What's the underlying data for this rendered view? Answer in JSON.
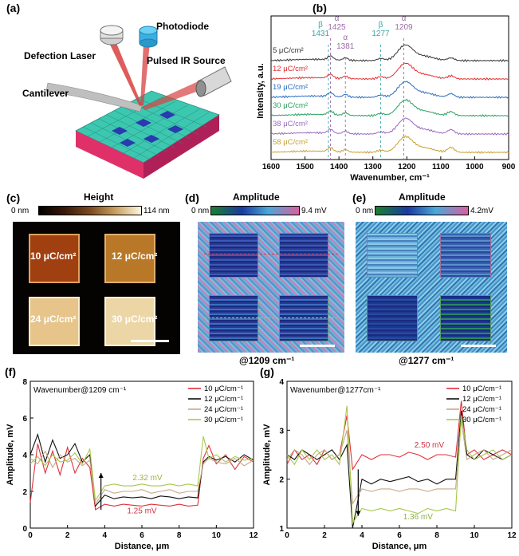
{
  "panels": {
    "a": {
      "label": "(a)",
      "labels": {
        "photodiode": "Photodiode",
        "laser": "Defection Laser",
        "ir": "Pulsed IR Source",
        "cantilever": "Cantilever"
      }
    },
    "b": {
      "label": "(b)",
      "ylabel": "Intensity, a.u.",
      "xlabel": "Wavenumber, cm⁻¹",
      "xticks": [
        "1600",
        "1500",
        "1400",
        "1300",
        "1200",
        "1100",
        "1000",
        "900"
      ],
      "annotations": [
        {
          "greek": "β",
          "value": "1431",
          "x": 1431,
          "color": "#3aa8a8"
        },
        {
          "greek": "α",
          "value": "1425",
          "x": 1425,
          "color": "#9b6aa8"
        },
        {
          "greek": "α",
          "value": "1381",
          "x": 1381,
          "color": "#9b6aa8"
        },
        {
          "greek": "β",
          "value": "1277",
          "x": 1277,
          "color": "#3aa8a8"
        },
        {
          "greek": "α",
          "value": "1209",
          "x": 1209,
          "color": "#9b6aa8"
        }
      ],
      "series": [
        {
          "name": "5 μC/cm²",
          "color": "#333333"
        },
        {
          "name": "12 μC/cm²",
          "color": "#e03030"
        },
        {
          "name": "19 μC/cm²",
          "color": "#2a6bc0"
        },
        {
          "name": "30 μC/cm²",
          "color": "#2aa060"
        },
        {
          "name": "38 μC/cm²",
          "color": "#9a6ac0"
        },
        {
          "name": "58 μC/cm²",
          "color": "#c8a030"
        }
      ]
    },
    "c": {
      "label": "(c)",
      "title": "Height",
      "min": "0 nm",
      "max": "114 nm",
      "squares": [
        "10 μC/cm²",
        "12 μC/cm²",
        "24 μC/cm²",
        "30 μC/cm²"
      ]
    },
    "d": {
      "label": "(d)",
      "title": "Amplitude",
      "min": "0 nm",
      "max": "9.4 mV",
      "caption": "@1209 cm⁻¹"
    },
    "e": {
      "label": "(e)",
      "title": "Amplitude",
      "min": "0 nm",
      "max": "4.2mV",
      "caption": "@1277 cm⁻¹"
    },
    "f": {
      "label": "(f)",
      "note": "Wavenumber@1209 cm⁻¹",
      "ylabel": "Amplitude, mV",
      "xlabel": "Distance, μm",
      "annot_high": "2.32 mV",
      "annot_low": "1.25 mV",
      "legend": [
        "10 μC/cm⁻¹",
        "12 μC/cm⁻¹",
        "24 μC/cm⁻¹",
        "30 μC/cm⁻¹"
      ]
    },
    "g": {
      "label": "(g)",
      "note": "Wavenumber@1277cm⁻¹",
      "ylabel": "Amplitude, mV",
      "xlabel": "Distance, μm",
      "annot_high": "2.50 mV",
      "annot_low": "1.36 mV",
      "legend": [
        "10 μC/cm⁻¹",
        "12 μC/cm⁻¹",
        "24 μC/cm⁻¹",
        "30 μC/cm⁻¹"
      ]
    }
  },
  "colors": {
    "s10": "#e0303a",
    "s12": "#111111",
    "s24": "#c8a88a",
    "s30": "#a8c84a"
  },
  "chart_data": [
    {
      "type": "line",
      "panel": "f",
      "xlabel": "Distance, μm",
      "ylabel": "Amplitude, mV",
      "xlim": [
        0,
        12
      ],
      "ylim": [
        0,
        8
      ],
      "xticks": [
        0,
        2,
        4,
        6,
        8,
        10,
        12
      ],
      "yticks": [
        0,
        2,
        4,
        6,
        8
      ],
      "x": [
        0.0,
        0.4,
        0.8,
        1.2,
        1.6,
        2.0,
        2.4,
        2.8,
        3.2,
        3.5,
        4.0,
        4.5,
        5.0,
        5.5,
        6.0,
        6.5,
        7.0,
        7.5,
        8.0,
        8.5,
        9.0,
        9.3,
        9.6,
        10.0,
        10.5,
        11.0,
        11.5,
        12.0
      ],
      "series": [
        {
          "name": "10 μC/cm⁻¹",
          "values": [
            1.4,
            4.6,
            3.0,
            4.2,
            2.9,
            4.4,
            3.0,
            3.8,
            3.3,
            1.0,
            1.3,
            1.2,
            1.3,
            1.25,
            1.2,
            1.3,
            1.25,
            1.2,
            1.3,
            1.2,
            1.25,
            3.8,
            4.5,
            3.5,
            4.0,
            3.2,
            3.9,
            3.6
          ]
        },
        {
          "name": "12 μC/cm⁻¹",
          "values": [
            4.0,
            5.1,
            3.6,
            4.8,
            3.8,
            4.0,
            4.6,
            3.6,
            4.0,
            1.2,
            1.8,
            1.6,
            1.7,
            1.65,
            1.7,
            1.6,
            1.75,
            1.7,
            1.6,
            1.7,
            1.65,
            3.6,
            3.9,
            3.7,
            3.9,
            3.6,
            4.0,
            3.7
          ]
        },
        {
          "name": "24 μC/cm⁻¹",
          "values": [
            3.8,
            3.5,
            4.2,
            3.3,
            4.0,
            3.6,
            3.8,
            3.4,
            3.7,
            1.3,
            2.1,
            1.9,
            2.0,
            2.0,
            2.1,
            1.9,
            2.0,
            2.1,
            1.9,
            2.0,
            2.0,
            3.5,
            3.8,
            3.6,
            3.5,
            3.8,
            3.4,
            3.7
          ]
        },
        {
          "name": "30 μC/cm⁻¹",
          "values": [
            3.5,
            3.9,
            3.4,
            4.0,
            3.6,
            3.7,
            4.1,
            3.5,
            4.3,
            1.5,
            2.3,
            2.4,
            2.3,
            2.3,
            2.4,
            2.3,
            2.3,
            2.4,
            2.3,
            2.4,
            2.3,
            5.0,
            3.8,
            4.0,
            3.6,
            3.9,
            3.7,
            3.8
          ]
        }
      ]
    },
    {
      "type": "line",
      "panel": "g",
      "xlabel": "Distance, μm",
      "ylabel": "Amplitude, mV",
      "xlim": [
        0,
        12
      ],
      "ylim": [
        1,
        4
      ],
      "xticks": [
        0,
        2,
        4,
        6,
        8,
        10,
        12
      ],
      "yticks": [
        1,
        2,
        3,
        4
      ],
      "x": [
        0.0,
        0.4,
        0.8,
        1.2,
        1.6,
        2.0,
        2.4,
        2.8,
        3.2,
        3.5,
        4.0,
        4.5,
        5.0,
        5.5,
        6.0,
        6.5,
        7.0,
        7.5,
        8.0,
        8.5,
        9.0,
        9.3,
        9.6,
        10.0,
        10.5,
        11.0,
        11.5,
        12.0
      ],
      "series": [
        {
          "name": "10 μC/cm⁻¹",
          "values": [
            2.3,
            2.6,
            2.4,
            2.5,
            2.3,
            2.6,
            2.4,
            2.5,
            3.3,
            2.2,
            2.5,
            2.4,
            2.5,
            2.5,
            2.45,
            2.55,
            2.5,
            2.4,
            2.5,
            2.5,
            2.45,
            3.6,
            2.5,
            2.6,
            2.4,
            2.5,
            2.6,
            2.5
          ]
        },
        {
          "name": "12 μC/cm⁻¹",
          "values": [
            2.5,
            2.4,
            2.6,
            2.5,
            2.4,
            2.5,
            2.6,
            2.4,
            2.7,
            1.0,
            2.0,
            1.9,
            2.0,
            1.95,
            2.0,
            2.05,
            1.95,
            2.0,
            1.9,
            2.0,
            2.0,
            3.4,
            2.5,
            2.4,
            2.6,
            2.5,
            2.4,
            2.5
          ]
        },
        {
          "name": "24 μC/cm⁻¹",
          "values": [
            2.4,
            2.6,
            2.5,
            2.3,
            2.5,
            2.6,
            2.4,
            2.5,
            3.0,
            1.5,
            1.8,
            1.75,
            1.8,
            1.8,
            1.75,
            1.8,
            1.8,
            1.75,
            1.8,
            1.8,
            1.8,
            3.2,
            2.4,
            2.5,
            2.6,
            2.4,
            2.5,
            2.6
          ]
        },
        {
          "name": "30 μC/cm⁻¹",
          "values": [
            2.5,
            2.3,
            2.6,
            2.4,
            2.6,
            2.4,
            2.5,
            2.3,
            3.5,
            1.1,
            1.4,
            1.35,
            1.4,
            1.35,
            1.4,
            1.35,
            1.3,
            1.4,
            1.35,
            1.4,
            1.35,
            3.3,
            2.6,
            2.4,
            2.5,
            2.6,
            2.4,
            2.5
          ]
        }
      ]
    }
  ]
}
